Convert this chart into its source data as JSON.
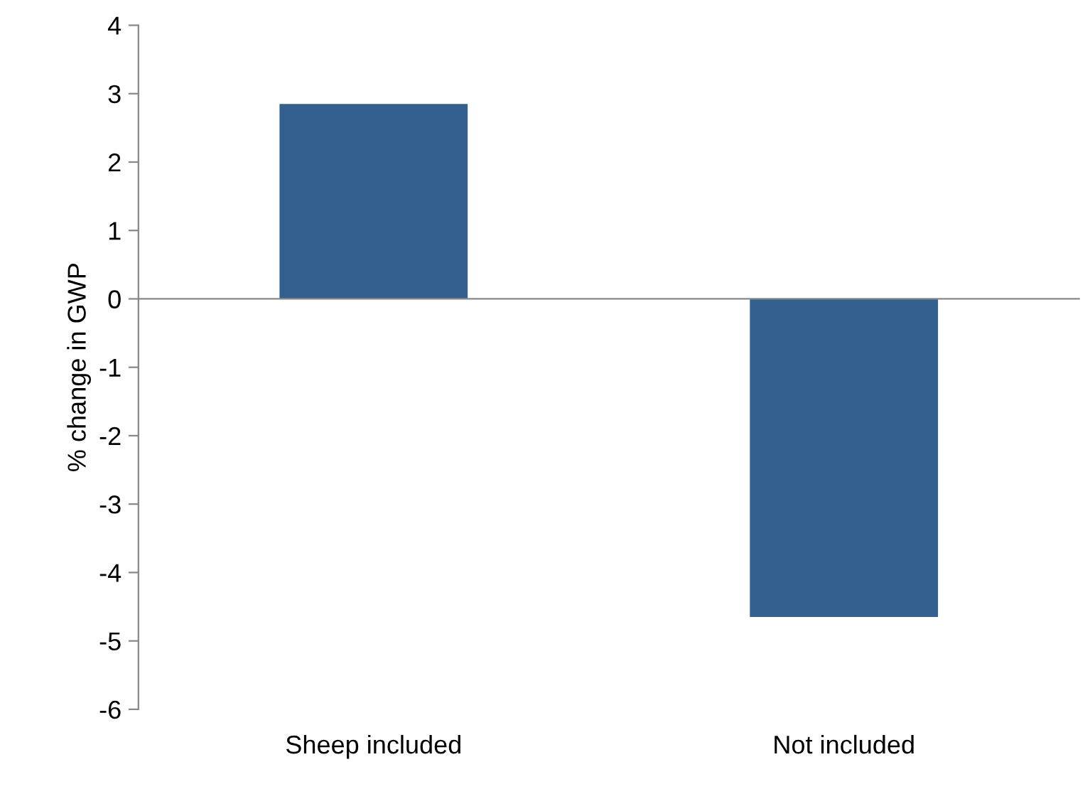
{
  "chart_data": {
    "type": "bar",
    "ylabel": "% change in GWP",
    "categories": [
      "Sheep included",
      "Not included"
    ],
    "values": [
      2.85,
      -4.65
    ],
    "color": "#34608f",
    "ylim": [
      -6,
      4
    ],
    "yticks": [
      -6,
      -5,
      -4,
      -3,
      -2,
      -1,
      0,
      1,
      2,
      3,
      4
    ],
    "legend": false
  }
}
